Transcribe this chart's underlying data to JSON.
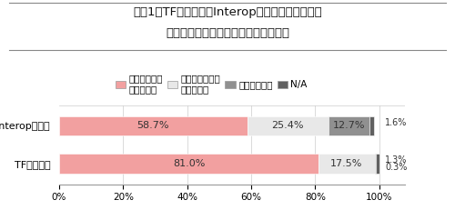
{
  "title_line1": "＜図1＞TF参加組織とInteropの来場者における、",
  "title_line2": "枕渇に対する認知状況の比較のグラフ",
  "categories": [
    "Interop来場者",
    "TF団体組織"
  ],
  "segments": [
    {
      "label": "時期を含めて\n知っていた",
      "color": "#f2a0a0",
      "values": [
        58.7,
        81.0
      ]
    },
    {
      "label": "時期は不明だが\n知っていた",
      "color": "#e8e8e8",
      "values": [
        25.4,
        17.5
      ]
    },
    {
      "label": "知らなかった",
      "color": "#909090",
      "values": [
        12.7,
        0.3
      ]
    },
    {
      "label": "N/A",
      "color": "#606060",
      "values": [
        1.6,
        1.3
      ]
    }
  ],
  "bar_labels": [
    [
      [
        "58.7%",
        0,
        58.7
      ],
      [
        "25.4%",
        58.7,
        25.4
      ],
      [
        "12.7%",
        84.1,
        12.7
      ]
    ],
    [
      [
        "81.0%",
        0,
        81.0
      ],
      [
        "17.5%",
        81.0,
        17.5
      ]
    ]
  ],
  "right_labels": {
    "interop": [
      [
        "1.6%",
        0.08
      ]
    ],
    "tf": [
      [
        "1.3%",
        0.1
      ],
      [
        "0.3%",
        -0.1
      ]
    ]
  },
  "background_color": "#ffffff",
  "title_fontsize": 9.5,
  "bar_label_fontsize": 8,
  "tick_fontsize": 7.5,
  "legend_fontsize": 7.5,
  "yaxis_fontsize": 8
}
